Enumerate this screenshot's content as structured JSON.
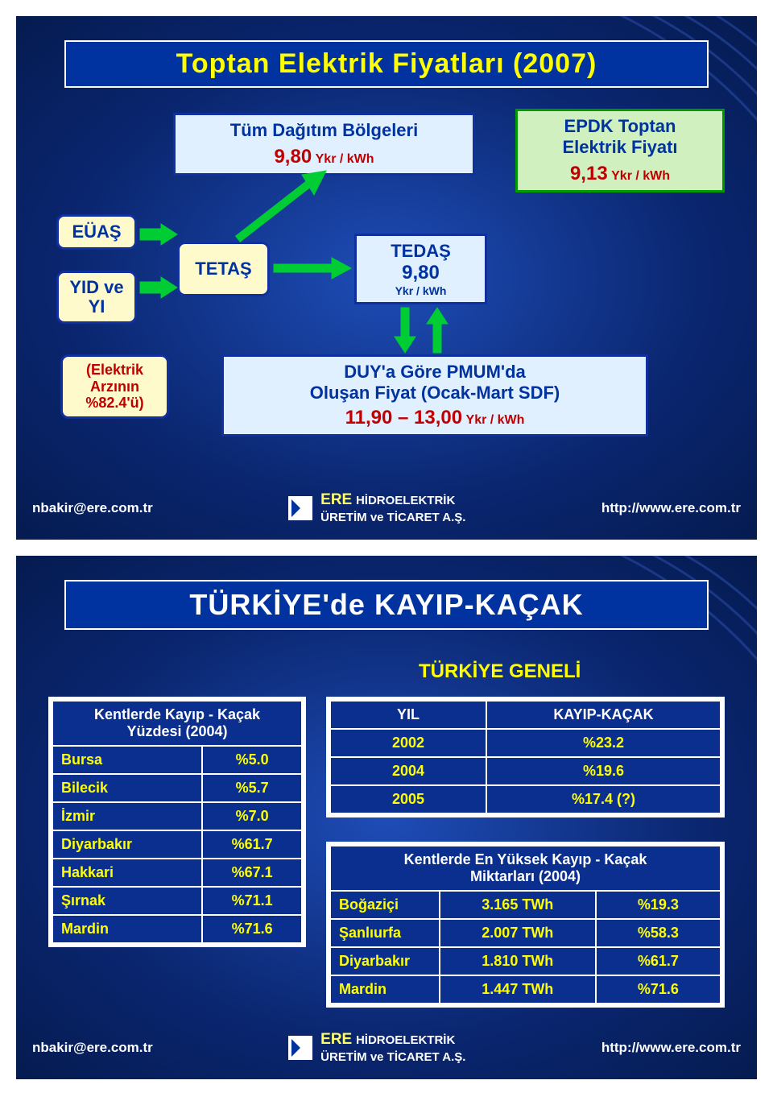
{
  "slide1": {
    "title": "Toptan Elektrik Fiyatları (2007)",
    "regions_box": {
      "line1": "Tüm Dağıtım Bölgeleri",
      "value": "9,80",
      "unit": "Ykr / kWh"
    },
    "epdk_box": {
      "line1": "EPDK Toptan",
      "line2": "Elektrik Fiyatı",
      "value": "9,13",
      "unit": "Ykr / kWh"
    },
    "euas": "EÜAŞ",
    "yid": "YID ve YI",
    "tetas": "TETAŞ",
    "tedas_box": {
      "label": "TEDAŞ",
      "value": "9,80",
      "unit": "Ykr / kWh"
    },
    "supply_note": {
      "l1": "(Elektrik",
      "l2": "Arzının",
      "l3": "%82.4'ü)"
    },
    "duy_box": {
      "l1": "DUY'a Göre PMUM'da",
      "l2": "Oluşan Fiyat (Ocak-Mart SDF)",
      "value": "11,90 – 13,00",
      "unit": "Ykr / kWh"
    }
  },
  "slide2": {
    "title": "TÜRKİYE'de KAYIP-KAÇAK",
    "overall_title": "TÜRKİYE GENELİ",
    "left_table": {
      "header_l1": "Kentlerde Kayıp - Kaçak",
      "header_l2": "Yüzdesi (2004)",
      "rows": [
        {
          "city": "Bursa",
          "pct": "%5.0"
        },
        {
          "city": "Bilecik",
          "pct": "%5.7"
        },
        {
          "city": "İzmir",
          "pct": "%7.0"
        },
        {
          "city": "Diyarbakır",
          "pct": "%61.7"
        },
        {
          "city": "Hakkari",
          "pct": "%67.1"
        },
        {
          "city": "Şırnak",
          "pct": "%71.1"
        },
        {
          "city": "Mardin",
          "pct": "%71.6"
        }
      ]
    },
    "year_table": {
      "col1": "YIL",
      "col2": "KAYIP-KAÇAK",
      "rows": [
        {
          "y": "2002",
          "v": "%23.2"
        },
        {
          "y": "2004",
          "v": "%19.6"
        },
        {
          "y": "2005",
          "v": "%17.4 (?)"
        }
      ]
    },
    "max_table": {
      "header_l1": "Kentlerde En Yüksek Kayıp - Kaçak",
      "header_l2": "Miktarları (2004)",
      "rows": [
        {
          "city": "Boğaziçi",
          "amt": "3.165 TWh",
          "pct": "%19.3"
        },
        {
          "city": "Şanlıurfa",
          "amt": "2.007 TWh",
          "pct": "%58.3"
        },
        {
          "city": "Diyarbakır",
          "amt": "1.810 TWh",
          "pct": "%61.7"
        },
        {
          "city": "Mardin",
          "amt": "1.447 TWh",
          "pct": "%71.6"
        }
      ]
    }
  },
  "footer": {
    "email": "nbakir@ere.com.tr",
    "brand": "ERE",
    "brand_sub1": "HİDROELEKTRİK",
    "brand_sub2": "ÜRETİM ve TİCARET A.Ş.",
    "url": "http://www.ere.com.tr"
  },
  "colors": {
    "slide_bg_inner": "#1e4db7",
    "slide_bg_outer": "#051b50",
    "title_bg": "#0033a0",
    "yellow": "#ffff00",
    "lightblue_box": "#e0f0ff",
    "cream_box": "#fffacc",
    "green_box": "#d0f0c0",
    "blue_border": "#1030a0",
    "green_border": "#009900",
    "arrow_green": "#00cc33",
    "red": "#c00000",
    "white": "#ffffff"
  },
  "layout": {
    "slide_w": 920,
    "slide_h": 650,
    "title_fontsize": 34,
    "box_fontsize": 20,
    "footer_fontsize": 17
  }
}
